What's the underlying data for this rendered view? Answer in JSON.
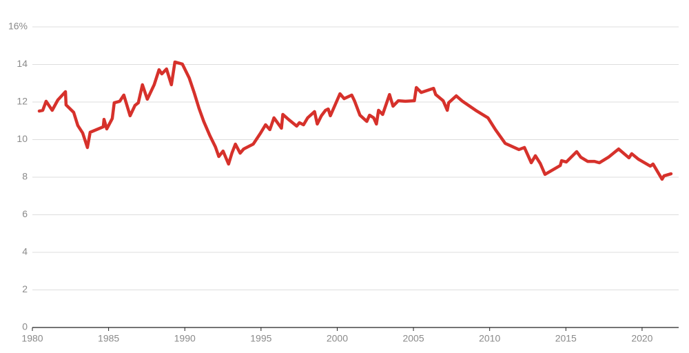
{
  "chart_data": {
    "type": "line",
    "color": "#d6312b",
    "grid": true,
    "xlim": [
      1980,
      2022.4
    ],
    "xticks": [
      1980,
      1985,
      1990,
      1995,
      2000,
      2005,
      2010,
      2015,
      2020
    ],
    "ylim": [
      0,
      16
    ],
    "yticks": [
      0,
      2,
      4,
      6,
      8,
      10,
      12,
      14,
      {
        "value": 16,
        "label": "16%"
      }
    ],
    "x": [
      1980.45,
      1980.68,
      1980.9,
      1981.3,
      1981.67,
      1982.17,
      1982.21,
      1982.71,
      1982.98,
      1983.3,
      1983.61,
      1983.79,
      1984.65,
      1984.7,
      1984.88,
      1985.24,
      1985.37,
      1985.73,
      1986.0,
      1986.41,
      1986.73,
      1986.95,
      1987.22,
      1987.54,
      1987.99,
      1988.31,
      1988.49,
      1988.8,
      1989.12,
      1989.35,
      1989.84,
      1990.29,
      1990.61,
      1990.93,
      1991.24,
      1991.65,
      1992.01,
      1992.23,
      1992.51,
      1992.87,
      1993.09,
      1993.32,
      1993.63,
      1993.86,
      1994.49,
      1994.94,
      1995.3,
      1995.58,
      1995.85,
      1996.34,
      1996.43,
      1996.84,
      1997.34,
      1997.52,
      1997.79,
      1998.06,
      1998.51,
      1998.69,
      1998.96,
      1999.23,
      1999.41,
      1999.55,
      2000.18,
      2000.45,
      2000.95,
      2001.13,
      2001.49,
      2001.94,
      2002.12,
      2002.39,
      2002.57,
      2002.71,
      2002.98,
      2003.43,
      2003.66,
      2004.01,
      2004.47,
      2005.06,
      2005.19,
      2005.51,
      2006.32,
      2006.46,
      2006.95,
      2007.22,
      2007.31,
      2007.81,
      2008.22,
      2009.16,
      2009.89,
      2010.38,
      2011.02,
      2011.92,
      2012.28,
      2012.73,
      2013.0,
      2013.32,
      2013.63,
      2014.63,
      2014.72,
      2015.03,
      2015.71,
      2015.98,
      2016.43,
      2016.88,
      2017.2,
      2017.79,
      2018.46,
      2019.14,
      2019.32,
      2019.77,
      2020.54,
      2020.72,
      2021.31,
      2021.44,
      2021.9
    ],
    "values": [
      11.52,
      11.56,
      12.04,
      11.56,
      12.11,
      12.55,
      11.85,
      11.45,
      10.75,
      10.35,
      9.58,
      10.39,
      10.68,
      11.08,
      10.57,
      11.12,
      11.96,
      12.04,
      12.37,
      11.27,
      11.82,
      11.96,
      12.92,
      12.15,
      12.92,
      13.72,
      13.5,
      13.76,
      12.92,
      14.13,
      14.02,
      13.28,
      12.51,
      11.67,
      10.97,
      10.2,
      9.61,
      9.1,
      9.39,
      8.7,
      9.28,
      9.76,
      9.28,
      9.5,
      9.76,
      10.31,
      10.79,
      10.53,
      11.16,
      10.61,
      11.34,
      11.05,
      10.72,
      10.9,
      10.79,
      11.16,
      11.49,
      10.83,
      11.27,
      11.56,
      11.63,
      11.27,
      12.44,
      12.18,
      12.37,
      12.07,
      11.3,
      10.97,
      11.3,
      11.16,
      10.83,
      11.56,
      11.34,
      12.4,
      11.78,
      12.07,
      12.04,
      12.07,
      12.77,
      12.51,
      12.73,
      12.4,
      12.07,
      11.56,
      11.96,
      12.33,
      12.04,
      11.52,
      11.16,
      10.53,
      9.8,
      9.47,
      9.58,
      8.77,
      9.14,
      8.73,
      8.15,
      8.62,
      8.88,
      8.81,
      9.36,
      9.06,
      8.84,
      8.84,
      8.77,
      9.06,
      9.5,
      9.03,
      9.25,
      8.95,
      8.59,
      8.7,
      7.89,
      8.07,
      8.18
    ]
  }
}
